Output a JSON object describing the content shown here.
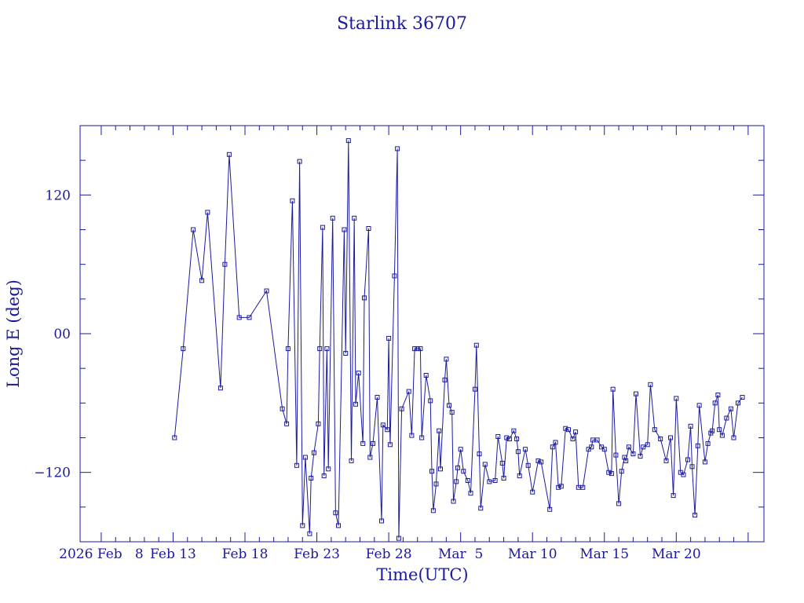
{
  "chart_data": {
    "type": "line",
    "title": "Starlink 36707",
    "xlabel": "Time(UTC)",
    "ylabel": "Long E (deg)",
    "xlim_days": [
      -6.47,
      41.1
    ],
    "x_ticks": [
      "2026 Feb   8",
      "Feb 13",
      "Feb 18",
      "Feb 23",
      "Feb 28",
      "Mar  5",
      "Mar 10",
      "Mar 15",
      "Mar 20"
    ],
    "ylim": [
      -180,
      180
    ],
    "y_ticks": [
      -120,
      0,
      120
    ],
    "y_tick_labels": [
      "−120",
      "00",
      "120"
    ],
    "marker": "square",
    "series": [
      {
        "x": [
          0.1,
          0.7,
          1.4,
          2.0,
          2.4,
          3.3,
          3.6,
          3.9,
          4.6,
          5.3,
          6.5,
          7.6,
          7.9,
          8.0,
          8.3,
          8.6,
          8.8,
          9.0,
          9.2,
          9.5,
          9.6,
          9.8,
          10.1,
          10.2,
          10.4,
          10.5,
          10.7,
          10.8,
          11.1,
          11.3,
          11.5,
          11.9,
          12.0,
          12.2,
          12.4,
          12.6,
          12.7,
          12.9,
          13.2,
          13.3,
          13.6,
          13.7,
          13.9,
          14.2,
          14.5,
          14.6,
          14.9,
          15.0,
          15.1,
          15.4,
          15.6,
          15.7,
          15.9,
          16.4,
          16.6,
          16.8,
          17.0,
          17.2,
          17.3,
          17.6,
          17.9,
          18.0,
          18.1,
          18.3,
          18.5,
          18.6,
          18.9,
          19.0,
          19.2,
          19.4,
          19.5,
          19.7,
          19.8,
          20.0,
          20.2,
          20.5,
          20.7,
          21.0,
          21.1,
          21.3,
          21.4,
          21.7,
          22.0,
          22.4,
          22.6,
          22.9,
          23.0,
          23.2,
          23.4,
          23.7,
          23.9,
          24.0,
          24.1,
          24.5,
          24.7,
          25.0,
          25.4,
          25.6,
          26.2,
          26.4,
          26.6,
          26.8,
          27.0,
          27.3,
          27.5,
          27.8,
          28.0,
          28.2,
          28.5,
          28.9,
          29.1,
          29.2,
          29.5,
          29.8,
          30.0,
          30.3,
          30.5,
          30.6,
          30.8,
          31.0,
          31.2,
          31.4,
          31.5,
          31.7,
          32.0,
          32.2,
          32.5,
          32.7,
          33.0,
          33.2,
          33.5,
          33.9,
          34.3,
          34.6,
          34.8,
          35.0,
          35.3,
          35.5,
          35.8,
          36.0,
          36.1,
          36.3,
          36.5,
          36.6,
          37.0,
          37.2,
          37.4,
          37.5,
          37.7,
          37.9,
          38.0,
          38.2,
          38.5,
          38.8,
          39.0,
          39.3,
          39.6
        ],
        "y": [
          -90,
          -13,
          90,
          46,
          105,
          -47,
          60,
          155,
          14,
          14,
          37,
          -65,
          -78,
          -13,
          115,
          -114,
          149,
          -166,
          -107,
          -173,
          -125,
          -103,
          -78,
          -13,
          92,
          -123,
          -13,
          -117,
          100,
          -155,
          -166,
          90,
          -17,
          167,
          -110,
          100,
          -61,
          -34,
          -95,
          31,
          91,
          -107,
          -95,
          -55,
          -162,
          -79,
          -83,
          -4,
          -96,
          50,
          160,
          -177,
          -65,
          -50,
          -88,
          -13,
          -13,
          -13,
          -90,
          -36,
          -58,
          -119,
          -153,
          -130,
          -84,
          -117,
          -40,
          -22,
          -62,
          -68,
          -145,
          -128,
          -116,
          -100,
          -119,
          -127,
          -138,
          -48,
          -10,
          -104,
          -151,
          -113,
          -128,
          -127,
          -89,
          -112,
          -125,
          -90,
          -91,
          -84,
          -91,
          -102,
          -123,
          -100,
          -114,
          -137,
          -110,
          -111,
          -152,
          -98,
          -94,
          -133,
          -132,
          -82,
          -83,
          -91,
          -85,
          -133,
          -133,
          -100,
          -98,
          -92,
          -92,
          -98,
          -100,
          -120,
          -121,
          -48,
          -105,
          -147,
          -119,
          -107,
          -110,
          -98,
          -104,
          -52,
          -106,
          -98,
          -96,
          -44,
          -83,
          -91,
          -110,
          -90,
          -140,
          -56,
          -120,
          -122,
          -109,
          -80,
          -115,
          -157,
          -97,
          -62,
          -111,
          -95,
          -86,
          -84,
          -60,
          -53,
          -83,
          -88,
          -73,
          -65,
          -90,
          -60,
          -55
        ],
        "note_y": "plotted longitude path wraps repeatedly across ±180° between roughly Feb 14 and Mar 15"
      }
    ],
    "grid": false,
    "legend": "none"
  }
}
